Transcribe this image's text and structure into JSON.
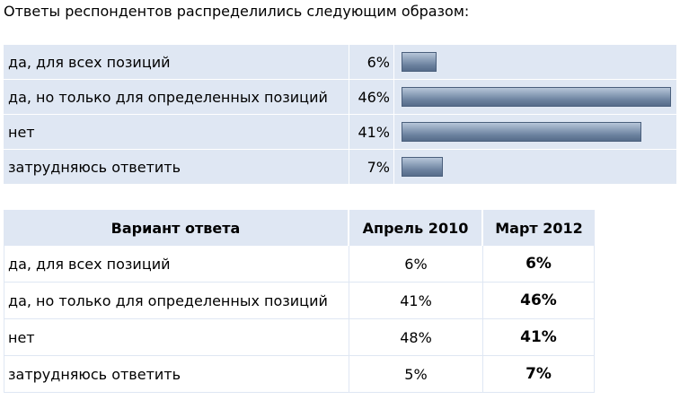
{
  "intro_text": "Ответы респондентов распределились следующим образом:",
  "chart_data": {
    "type": "bar",
    "categories": [
      "да, для всех позиций",
      "да, но только для определенных позиций",
      "нет",
      "затрудняюсь ответить"
    ],
    "values": [
      6,
      46,
      41,
      7
    ],
    "value_labels": [
      "6%",
      "46%",
      "41%",
      "7%"
    ],
    "unit": "%",
    "bar_color": "#6f84a0"
  },
  "comparison_table": {
    "headers": [
      "Вариант ответа",
      "Апрель 2010",
      "Март 2012"
    ],
    "rows": [
      {
        "label": "да, для всех позиций",
        "apr2010": "6%",
        "mar2012": "6%"
      },
      {
        "label": "да, но только для определенных позиций",
        "apr2010": "41%",
        "mar2012": "46%"
      },
      {
        "label": "нет",
        "apr2010": "48%",
        "mar2012": "41%"
      },
      {
        "label": "затрудняюсь ответить",
        "apr2010": "5%",
        "mar2012": "7%"
      }
    ]
  },
  "colors": {
    "table_bg": "#dfe7f3",
    "bar_fill": "#6f84a0"
  }
}
